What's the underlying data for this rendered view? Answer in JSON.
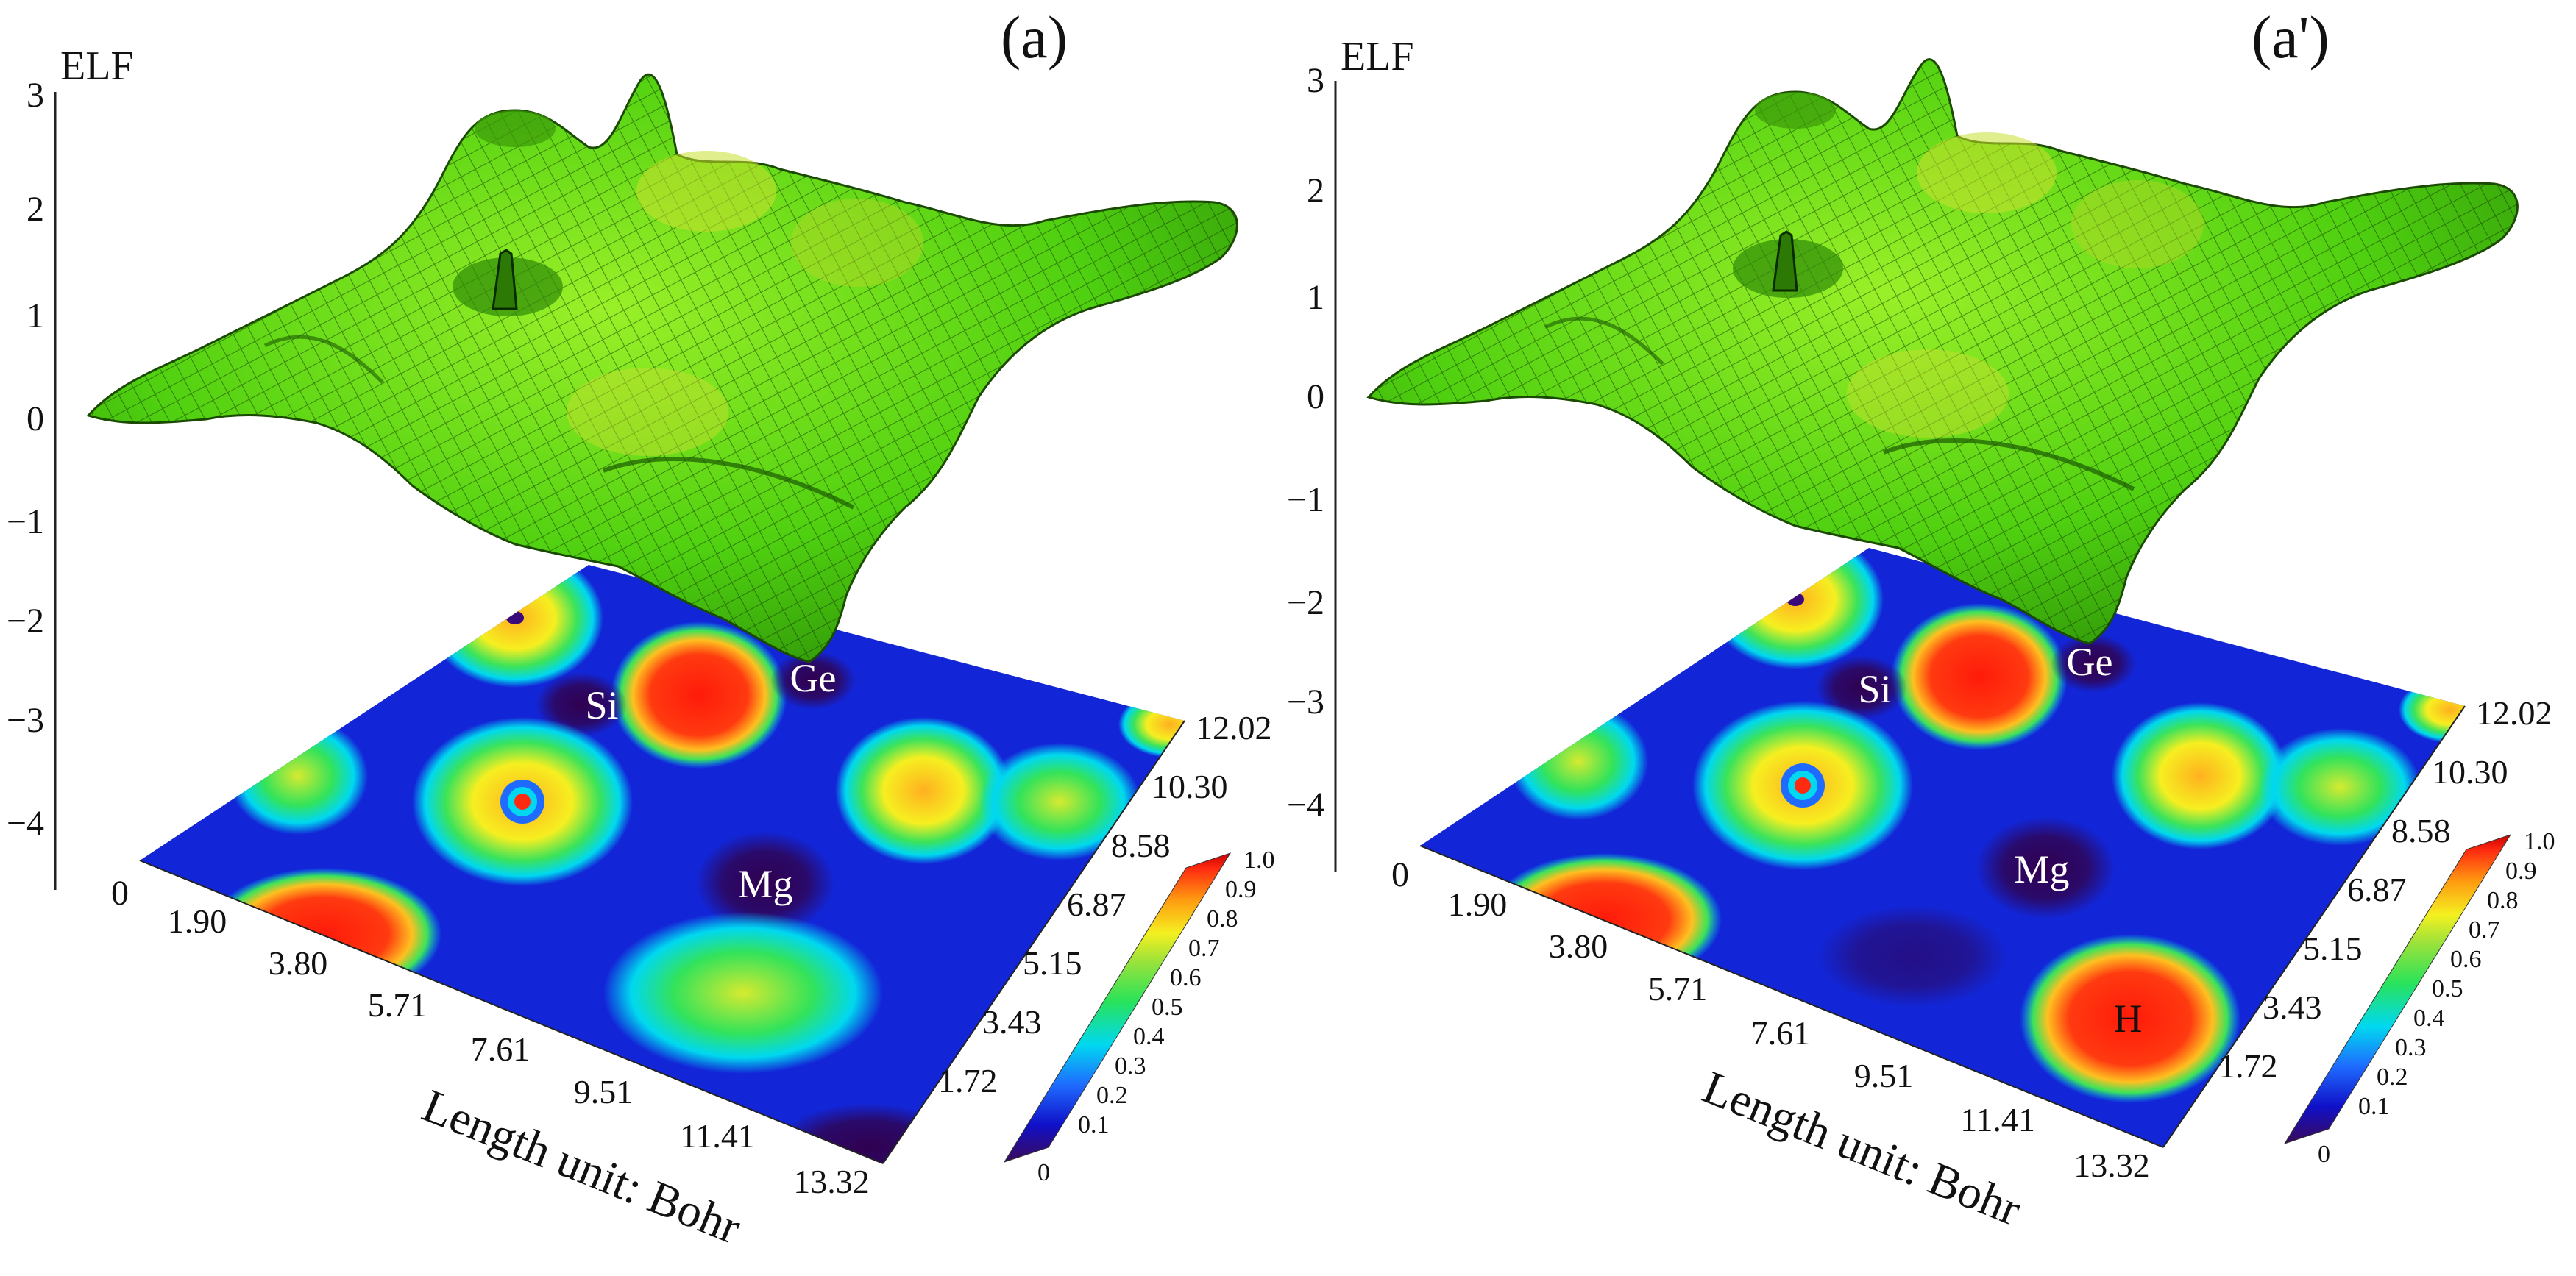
{
  "figure": {
    "panels": [
      {
        "id": "a",
        "label": "(a)",
        "z_axis_title": "ELF",
        "z_ticks": [
          "3",
          "2",
          "1",
          "0",
          "−1",
          "−2",
          "−3",
          "−4"
        ],
        "axis_origin": "0",
        "x_ticks": [
          "1.90",
          "3.80",
          "5.71",
          "7.61",
          "9.51",
          "11.41",
          "13.32"
        ],
        "y_ticks": [
          "12.02",
          "10.30",
          "8.58",
          "6.87",
          "5.15",
          "3.43",
          "1.72"
        ],
        "length_label": "Length unit: Bohr",
        "atom_labels": [
          "Si",
          "Ge",
          "Mg"
        ],
        "colorbar_ticks": [
          "1.0",
          "0.9",
          "0.8",
          "0.7",
          "0.6",
          "0.5",
          "0.4",
          "0.3",
          "0.2",
          "0.1",
          "0"
        ]
      },
      {
        "id": "a-prime",
        "label": "(a')",
        "z_axis_title": "ELF",
        "z_ticks": [
          "3",
          "2",
          "1",
          "0",
          "−1",
          "−2",
          "−3",
          "−4"
        ],
        "axis_origin": "0",
        "x_ticks": [
          "1.90",
          "3.80",
          "5.71",
          "7.61",
          "9.51",
          "11.41",
          "13.32"
        ],
        "y_ticks": [
          "12.02",
          "10.30",
          "8.58",
          "6.87",
          "5.15",
          "3.43",
          "1.72"
        ],
        "length_label": "Length unit: Bohr",
        "atom_labels": [
          "Si",
          "Ge",
          "Mg",
          "H"
        ],
        "colorbar_ticks": [
          "1.0",
          "0.9",
          "0.8",
          "0.7",
          "0.6",
          "0.5",
          "0.4",
          "0.3",
          "0.2",
          "0.1",
          "0"
        ]
      }
    ],
    "colorbar_colors": [
      "#3b0a5a",
      "#1010c8",
      "#1f6bff",
      "#00d8f0",
      "#29e35a",
      "#9ce23a",
      "#f4f020",
      "#ff9a10",
      "#ff2a10",
      "#c80000"
    ],
    "surface_color": "#55d813",
    "mesh_color": "#0c2a00"
  }
}
